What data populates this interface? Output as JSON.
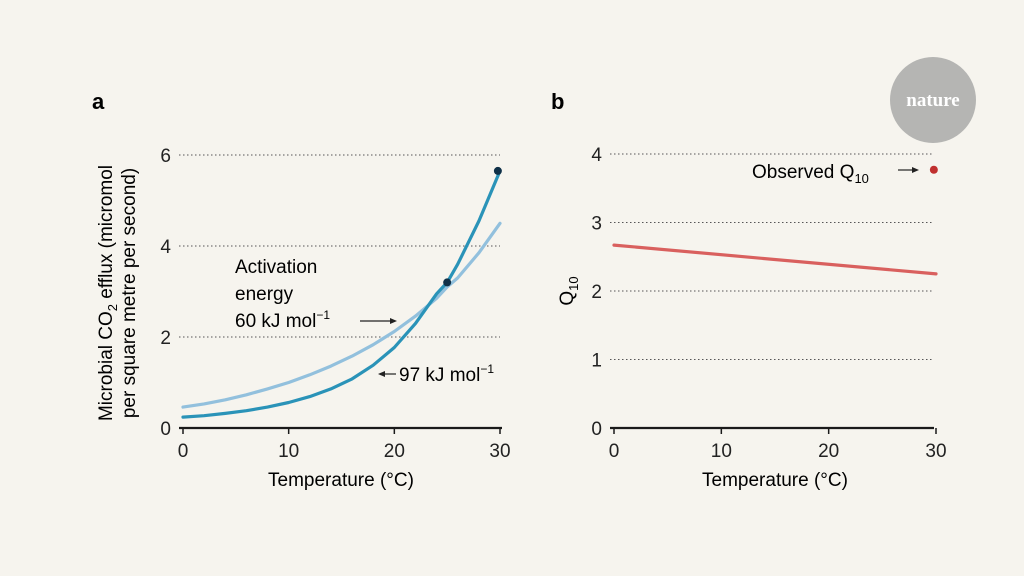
{
  "logo": {
    "text": "nature",
    "bg_color": "#b5b5b3",
    "text_color": "#ffffff"
  },
  "panels": {
    "a_label": "a",
    "b_label": "b"
  },
  "colors": {
    "curve_97": "#2a93b8",
    "curve_60": "#92c0dd",
    "point": "#0f3048",
    "q10_line": "#d9605e",
    "observed_point": "#c0302f",
    "axis": "#1a1a1a",
    "grid": "#555555",
    "text": "#222222"
  },
  "annotations": {
    "activation_line1": "Activation",
    "activation_line2": "energy",
    "ea60_prefix": "60 kJ mol",
    "ea97_prefix": "97 kJ mol",
    "exp": "−1",
    "observed_prefix": "Observed Q",
    "observed_sub": "10"
  },
  "chart_data": [
    {
      "panel": "a",
      "type": "line",
      "xlabel": "Temperature (°C)",
      "ylabel_line1_pre": "Microbial CO",
      "ylabel_line1_sub": "2",
      "ylabel_line1_post": " efflux (micromol",
      "ylabel_line2": "per square metre per second)",
      "xlim": [
        0,
        30
      ],
      "ylim": [
        0,
        6
      ],
      "xticks": [
        0,
        10,
        20,
        30
      ],
      "yticks": [
        0,
        2,
        4,
        6
      ],
      "grid": "horizontal dotted",
      "series": [
        {
          "name": "97 kJ mol−1",
          "x": [
            0,
            2,
            4,
            6,
            8,
            10,
            12,
            14,
            16,
            18,
            20,
            22,
            24,
            25,
            26,
            28,
            30
          ],
          "y": [
            0.24,
            0.27,
            0.32,
            0.38,
            0.46,
            0.56,
            0.69,
            0.86,
            1.08,
            1.38,
            1.77,
            2.3,
            2.95,
            3.2,
            3.6,
            4.55,
            5.65
          ]
        },
        {
          "name": "60 kJ mol−1",
          "x": [
            0,
            2,
            4,
            6,
            8,
            10,
            12,
            14,
            16,
            18,
            20,
            22,
            24,
            25,
            26,
            28,
            30
          ],
          "y": [
            0.46,
            0.53,
            0.62,
            0.73,
            0.86,
            1.0,
            1.17,
            1.36,
            1.58,
            1.83,
            2.12,
            2.46,
            2.85,
            3.1,
            3.3,
            3.85,
            4.5
          ]
        }
      ],
      "points": [
        {
          "x": 25,
          "y": 3.2
        },
        {
          "x": 29.8,
          "y": 5.65
        }
      ]
    },
    {
      "panel": "b",
      "type": "line",
      "xlabel": "Temperature (°C)",
      "ylabel_pre": "Q",
      "ylabel_sub": "10",
      "xlim": [
        0,
        30
      ],
      "ylim": [
        0,
        4
      ],
      "xticks": [
        0,
        10,
        20,
        30
      ],
      "yticks": [
        0,
        1,
        2,
        3,
        4
      ],
      "grid": "horizontal dotted",
      "series": [
        {
          "name": "Q10",
          "x": [
            0,
            30
          ],
          "y": [
            2.67,
            2.25
          ]
        }
      ],
      "points": [
        {
          "name": "Observed Q10",
          "x": 29.8,
          "y": 3.77
        }
      ]
    }
  ]
}
